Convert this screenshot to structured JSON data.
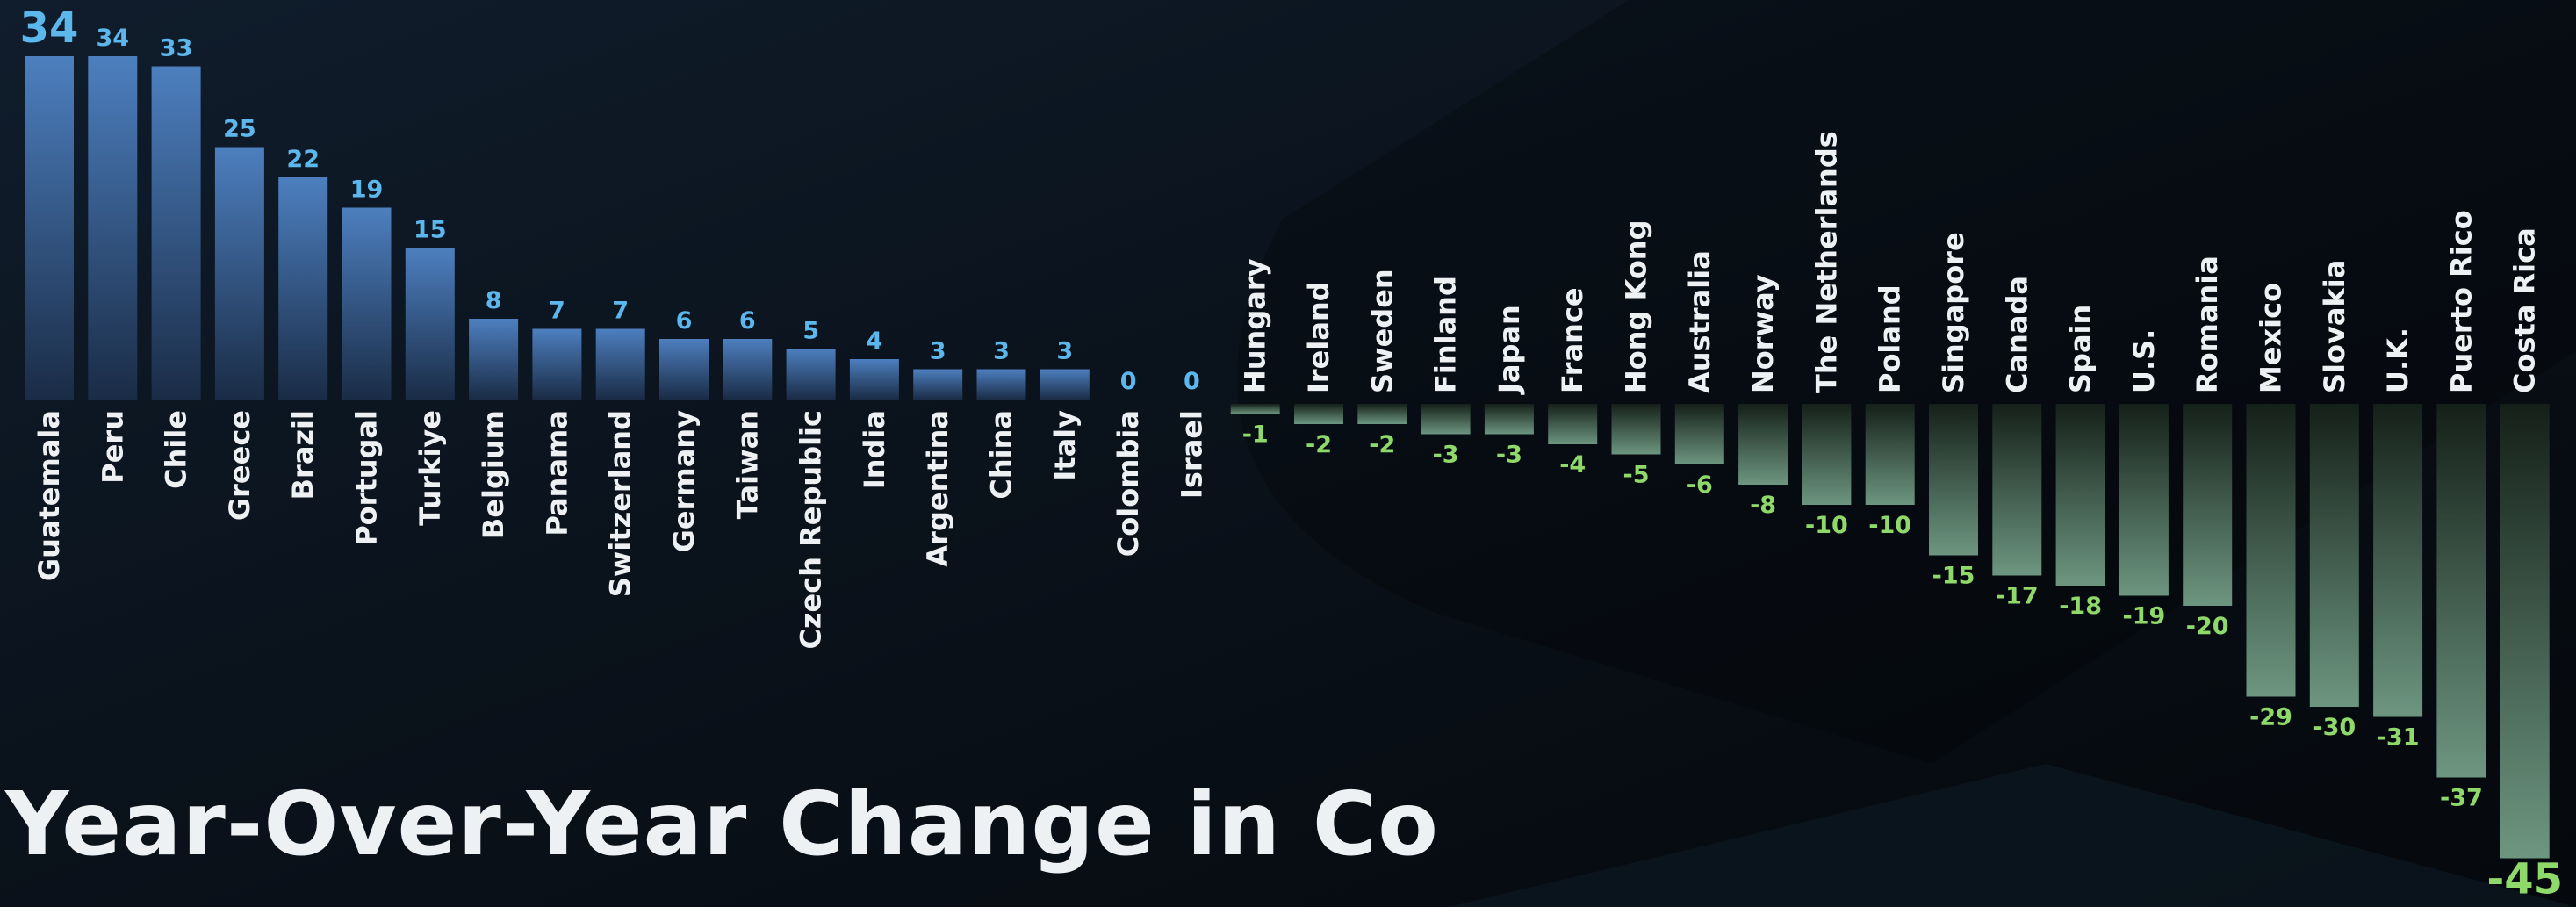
{
  "chart_data": {
    "type": "bar",
    "title": "Year-Over-Year Change in Co",
    "xlabel": "",
    "ylabel": "",
    "ylim": [
      -45,
      34
    ],
    "grid": false,
    "legend": "none",
    "categories": [
      "Guatemala",
      "Peru",
      "Chile",
      "Greece",
      "Brazil",
      "Portugal",
      "Turkiye",
      "Belgium",
      "Panama",
      "Switzerland",
      "Germany",
      "Taiwan",
      "Czech Republic",
      "India",
      "Argentina",
      "China",
      "Italy",
      "Colombia",
      "Israel",
      "Hungary",
      "Ireland",
      "Sweden",
      "Finland",
      "Japan",
      "France",
      "Hong Kong",
      "Australia",
      "Norway",
      "The Netherlands",
      "Poland",
      "Singapore",
      "Canada",
      "Spain",
      "U.S.",
      "Romania",
      "Mexico",
      "Slovakia",
      "U.K.",
      "Puerto Rico",
      "Costa Rica"
    ],
    "values": [
      34,
      34,
      33,
      25,
      22,
      19,
      15,
      8,
      7,
      7,
      6,
      6,
      5,
      4,
      3,
      3,
      3,
      0,
      0,
      -1,
      -2,
      -2,
      -3,
      -3,
      -4,
      -5,
      -6,
      -8,
      -10,
      -10,
      -15,
      -17,
      -18,
      -19,
      -20,
      -29,
      -30,
      -31,
      -37,
      -45
    ],
    "colors": {
      "positive_bar_top": "#4d7fbf",
      "positive_bar_bottom": "#1a2c46",
      "negative_bar_top": "#152019",
      "negative_bar_bottom": "#6d9680",
      "positive_label": "#5cb8ec",
      "negative_label": "#8fd86a",
      "category_label": "#eef1f4"
    }
  }
}
